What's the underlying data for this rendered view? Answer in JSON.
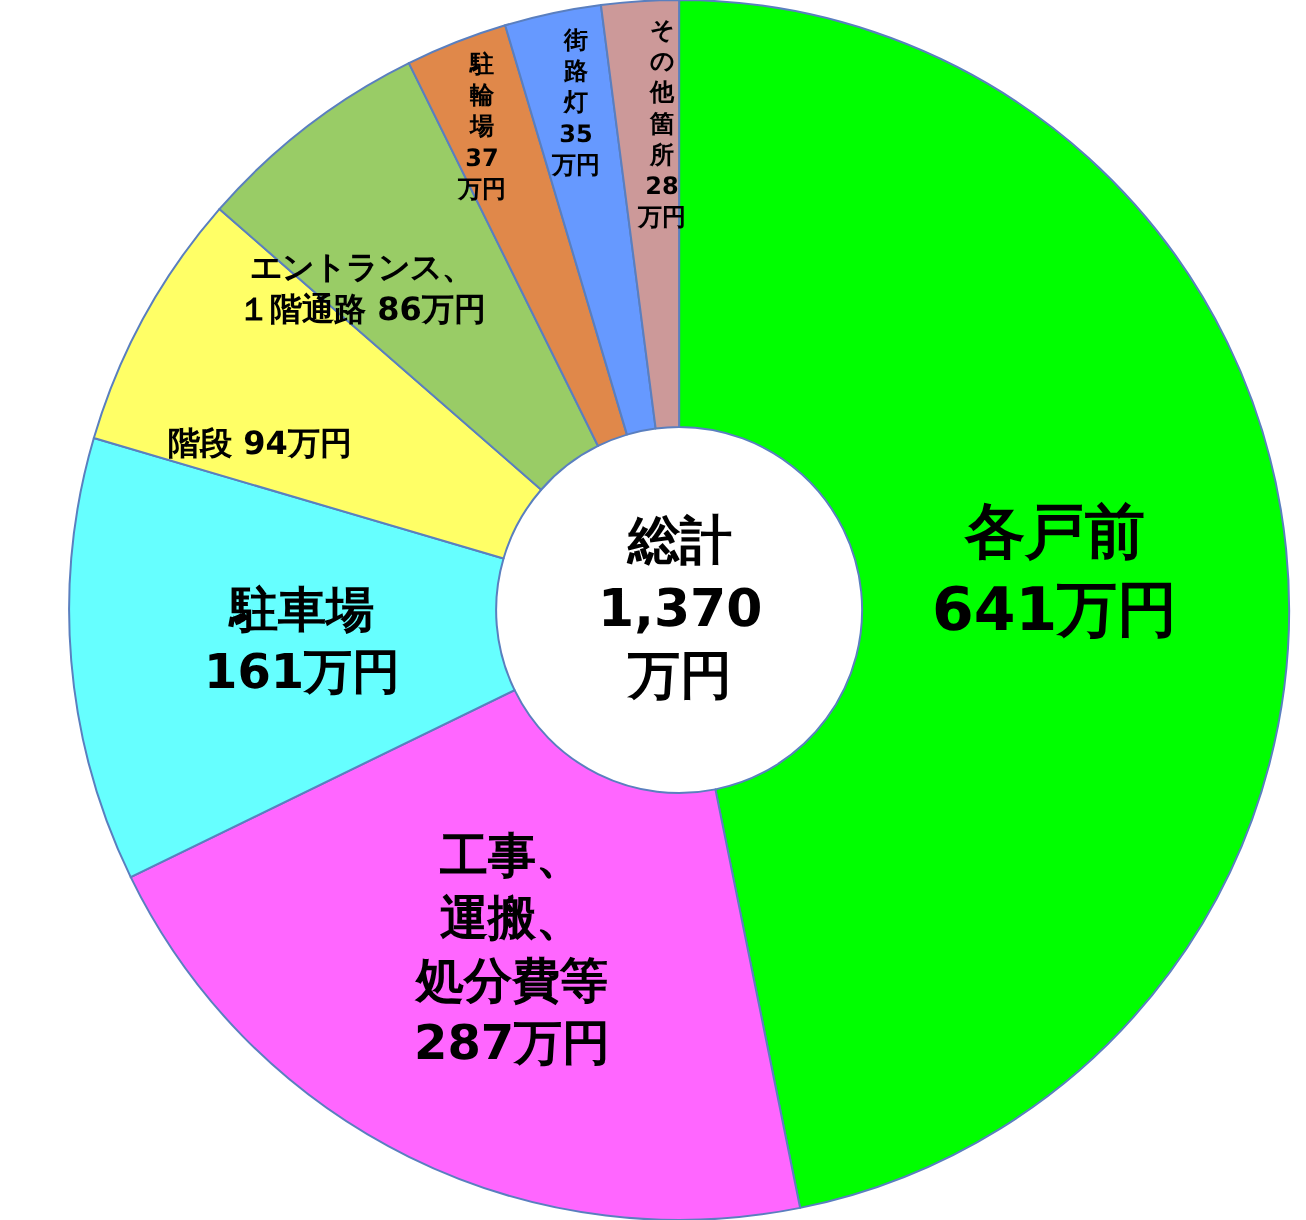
{
  "chart_data": {
    "type": "donut",
    "categories": [
      "各戸前",
      "工事、運搬、処分費等",
      "駐車場",
      "階段",
      "エントランス、１階通路",
      "駐輪場",
      "街路灯",
      "その他箇所"
    ],
    "values": [
      641,
      287,
      161,
      94,
      86,
      37,
      35,
      28
    ],
    "value_labels": [
      "641万円",
      "287万円",
      "161万円",
      "94万円",
      "86万円",
      "37万円",
      "35万円",
      "28万円"
    ],
    "colors": [
      "#00ff00",
      "#ff66ff",
      "#66ffff",
      "#ffff66",
      "#99cc66",
      "#e0884a",
      "#6699ff",
      "#cc9999"
    ],
    "annotations": [
      "総計\n1,370\n万円"
    ],
    "legend": false
  }
}
